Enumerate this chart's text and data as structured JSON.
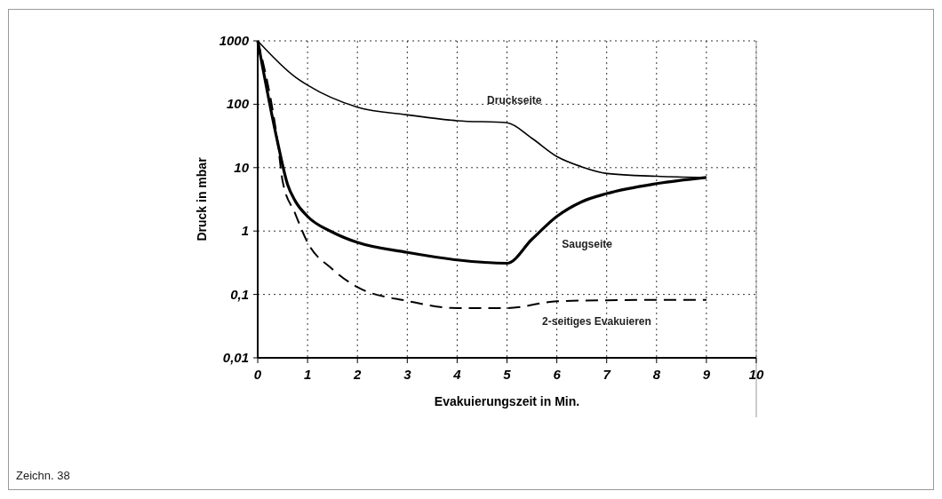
{
  "chart_data": {
    "type": "line",
    "xlabel": "Evakuierungszeit in Min.",
    "ylabel": "Druck in mbar",
    "log": "y",
    "grid": true,
    "xlim": [
      0,
      10
    ],
    "xticks": [
      0,
      1,
      2,
      3,
      4,
      5,
      6,
      7,
      8,
      9,
      10
    ],
    "ylim": [
      0.01,
      1000
    ],
    "yticks": [
      1000,
      100,
      10,
      1,
      {
        "value": 0.1,
        "label": "0,1"
      },
      {
        "value": 0.01,
        "label": "0,01"
      }
    ],
    "annotations": [
      "Zeichn. 38"
    ],
    "series": [
      {
        "name": "Druckseite",
        "color": "#000000",
        "line_style": "solid",
        "x": [
          0,
          0.75,
          1,
          2,
          3,
          4,
          5,
          5.5,
          6,
          6.5,
          7,
          8,
          9
        ],
        "values": [
          1000,
          270,
          200,
          90,
          68,
          55,
          51,
          29,
          15,
          10.3,
          8.1,
          7.3,
          7
        ]
      },
      {
        "name": "Saugseite",
        "color": "#000000",
        "line_style": "solid",
        "x": [
          0,
          0.4,
          0.6,
          0.75,
          1,
          1.5,
          2,
          3,
          4,
          5,
          5.5,
          6,
          6.5,
          7,
          8,
          9
        ],
        "values": [
          1000,
          25,
          5.4,
          3,
          1.7,
          0.96,
          0.66,
          0.46,
          0.35,
          0.31,
          0.74,
          1.7,
          2.9,
          3.9,
          5.6,
          7
        ]
      },
      {
        "name": "2-seitiges Evakuieren",
        "color": "#000000",
        "line_style": "dashed",
        "x": [
          0,
          0.4,
          0.5,
          0.75,
          1,
          1.5,
          2,
          3,
          4,
          5,
          6,
          7,
          8,
          9
        ],
        "values": [
          1000,
          25,
          6.1,
          1.9,
          0.66,
          0.25,
          0.13,
          0.079,
          0.061,
          0.061,
          0.078,
          0.081,
          0.082,
          0.082
        ]
      }
    ]
  }
}
